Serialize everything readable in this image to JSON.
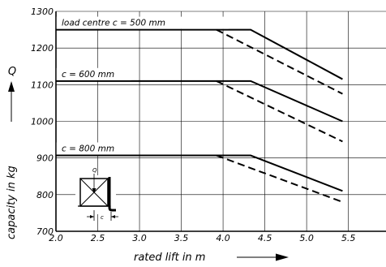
{
  "chart_data": {
    "type": "line",
    "xlabel": "rated lift in m",
    "ylabel": "capacity in kg",
    "y_symbol": "Q",
    "xlim": [
      2.0,
      5.95
    ],
    "ylim": [
      700,
      1300
    ],
    "x_ticks": [
      "2.0",
      "2.5",
      "3.0",
      "3.5",
      "4.0",
      "4.5",
      "5.0",
      "5.5"
    ],
    "x_tick_values": [
      2.0,
      2.5,
      3.0,
      3.5,
      4.0,
      4.5,
      5.0,
      5.5
    ],
    "y_ticks": [
      "700",
      "800",
      "900",
      "1000",
      "1100",
      "1200",
      "1300"
    ],
    "y_tick_values": [
      700,
      800,
      900,
      1000,
      1100,
      1200,
      1300
    ],
    "grid": true,
    "series": [
      {
        "name": "load centre c = 500 mm",
        "label_value": 1250,
        "solid": {
          "x": [
            2.0,
            4.33,
            5.43
          ],
          "y": [
            1250,
            1250,
            1115
          ]
        },
        "dashed": {
          "x": [
            3.92,
            5.43
          ],
          "y": [
            1250,
            1075
          ]
        }
      },
      {
        "name": "c = 600 mm",
        "label_value": 1110,
        "solid": {
          "x": [
            2.0,
            4.33,
            5.43
          ],
          "y": [
            1110,
            1110,
            1000
          ]
        },
        "dashed": {
          "x": [
            3.92,
            5.43
          ],
          "y": [
            1110,
            945
          ]
        }
      },
      {
        "name": "c = 800 mm",
        "label_value": 907,
        "solid": {
          "x": [
            2.0,
            4.33,
            5.43
          ],
          "y": [
            907,
            907,
            810
          ]
        },
        "dashed": {
          "x": [
            3.92,
            5.43
          ],
          "y": [
            907,
            780
          ]
        }
      }
    ],
    "inset": {
      "q_label": "Q",
      "c_label": "c"
    }
  }
}
